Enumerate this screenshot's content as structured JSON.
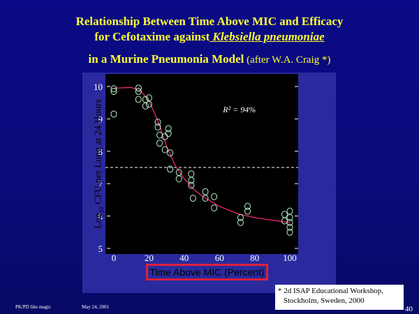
{
  "slide": {
    "title_line1": "Relationship Between Time Above MIC and Efficacy",
    "title_line2_a": "for Cefotaxime against",
    "title_line2_b": " Klebsiella pneumoniae",
    "title_line3_a": "in a Murine Pneumonia Model",
    "title_line3_b": " (after W.A. Craig *)",
    "footnote_line1": "* 2d ISAP Educational Workshop,",
    "footnote_line2": "Stockholm, Sweden, 2000",
    "footer_left": "PK/PD like magic",
    "footer_mid": "May 24, 2001",
    "page_number": "40"
  },
  "chart_data": {
    "type": "scatter",
    "xlabel": "Time Above MIC (Percent)",
    "ylabel_prefix": "Log",
    "ylabel_sub": "10",
    "ylabel_rest": " CFU per Lung at 24 Hours",
    "xlim": [
      0,
      100
    ],
    "ylim": [
      5,
      10
    ],
    "xticks": [
      0,
      20,
      40,
      60,
      80,
      100
    ],
    "yticks": [
      5,
      6,
      7,
      8,
      9,
      10
    ],
    "annotation": "R² = 94%",
    "reference_line_y": 7.5,
    "colors": {
      "plot_background": "#000000",
      "points": "#b8f0c8",
      "fit_curve": "#ff2a80",
      "reference_line": "#ffffff",
      "axis_text": "#ffffff",
      "xlabel_border": "#e0203a"
    },
    "points": [
      {
        "x": 0,
        "y": 9.93
      },
      {
        "x": 0,
        "y": 9.85
      },
      {
        "x": 0,
        "y": 9.15
      },
      {
        "x": 14,
        "y": 9.95
      },
      {
        "x": 14,
        "y": 9.85
      },
      {
        "x": 14,
        "y": 9.6
      },
      {
        "x": 18,
        "y": 9.6
      },
      {
        "x": 18,
        "y": 9.4
      },
      {
        "x": 20,
        "y": 9.65
      },
      {
        "x": 20,
        "y": 9.45
      },
      {
        "x": 25,
        "y": 8.9
      },
      {
        "x": 25,
        "y": 8.75
      },
      {
        "x": 26,
        "y": 8.5
      },
      {
        "x": 26,
        "y": 8.25
      },
      {
        "x": 29,
        "y": 8.45
      },
      {
        "x": 29,
        "y": 8.05
      },
      {
        "x": 31,
        "y": 8.7
      },
      {
        "x": 31,
        "y": 8.55
      },
      {
        "x": 32,
        "y": 7.95
      },
      {
        "x": 32,
        "y": 7.45
      },
      {
        "x": 37,
        "y": 7.35
      },
      {
        "x": 37,
        "y": 7.15
      },
      {
        "x": 44,
        "y": 7.3
      },
      {
        "x": 44,
        "y": 7.1
      },
      {
        "x": 44,
        "y": 6.95
      },
      {
        "x": 45,
        "y": 6.55
      },
      {
        "x": 52,
        "y": 6.75
      },
      {
        "x": 52,
        "y": 6.55
      },
      {
        "x": 57,
        "y": 6.6
      },
      {
        "x": 57,
        "y": 6.25
      },
      {
        "x": 72,
        "y": 5.95
      },
      {
        "x": 72,
        "y": 5.8
      },
      {
        "x": 76,
        "y": 6.3
      },
      {
        "x": 76,
        "y": 6.15
      },
      {
        "x": 97,
        "y": 6.05
      },
      {
        "x": 97,
        "y": 5.85
      },
      {
        "x": 100,
        "y": 6.15
      },
      {
        "x": 100,
        "y": 5.95
      },
      {
        "x": 100,
        "y": 5.8
      },
      {
        "x": 100,
        "y": 5.65
      },
      {
        "x": 100,
        "y": 5.5
      }
    ],
    "fit_curve": [
      {
        "x": 0,
        "y": 9.95
      },
      {
        "x": 10,
        "y": 9.97
      },
      {
        "x": 15,
        "y": 9.88
      },
      {
        "x": 20,
        "y": 9.55
      },
      {
        "x": 25,
        "y": 8.95
      },
      {
        "x": 30,
        "y": 8.15
      },
      {
        "x": 35,
        "y": 7.55
      },
      {
        "x": 40,
        "y": 7.15
      },
      {
        "x": 45,
        "y": 6.85
      },
      {
        "x": 50,
        "y": 6.62
      },
      {
        "x": 60,
        "y": 6.3
      },
      {
        "x": 70,
        "y": 6.08
      },
      {
        "x": 80,
        "y": 5.95
      },
      {
        "x": 90,
        "y": 5.87
      },
      {
        "x": 100,
        "y": 5.8
      }
    ]
  }
}
